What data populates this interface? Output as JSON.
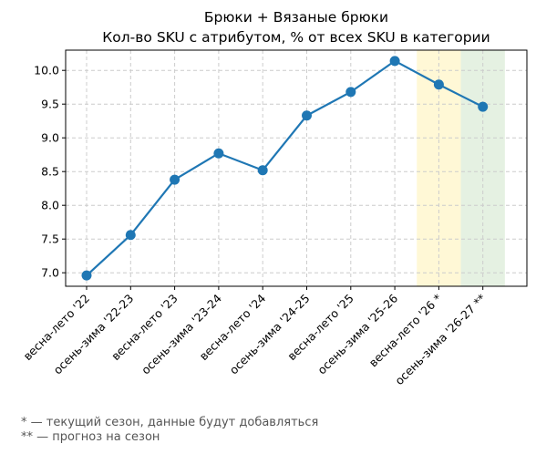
{
  "chart_data": {
    "type": "line",
    "title": "Брюки + Вязаные брюки",
    "subtitle": "Кол-во SKU с атрибутом, % от всех SKU в категории",
    "xlabel": "",
    "ylabel": "",
    "categories": [
      "весна-лето '22",
      "осень-зима '22-23",
      "весна-лето '23",
      "осень-зима '23-24",
      "весна-лето '24",
      "осень-зима '24-25",
      "весна-лето '25",
      "осень-зима '25-26",
      "весна-лето '26 *",
      "осень-зима '26-27 **"
    ],
    "series": [
      {
        "values": [
          6.96,
          7.56,
          8.38,
          8.77,
          8.52,
          9.33,
          9.68,
          10.14,
          9.79,
          9.46
        ]
      }
    ],
    "ylim": [
      6.8,
      10.3
    ],
    "yticks": [
      7.0,
      7.5,
      8.0,
      8.5,
      9.0,
      9.5,
      10.0
    ],
    "ytick_labels": [
      "7.0",
      "7.5",
      "8.0",
      "8.5",
      "9.0",
      "9.5",
      "10.0"
    ],
    "grid": true,
    "highlights": [
      {
        "category_index": 8,
        "color": "#fff8d6"
      },
      {
        "category_index": 9,
        "color": "#e5f1e2"
      }
    ],
    "line_color": "#1f77b4"
  },
  "footnotes": {
    "current": "* — текущий сезон, данные будут добавляться",
    "forecast": "** — прогноз на сезон"
  }
}
